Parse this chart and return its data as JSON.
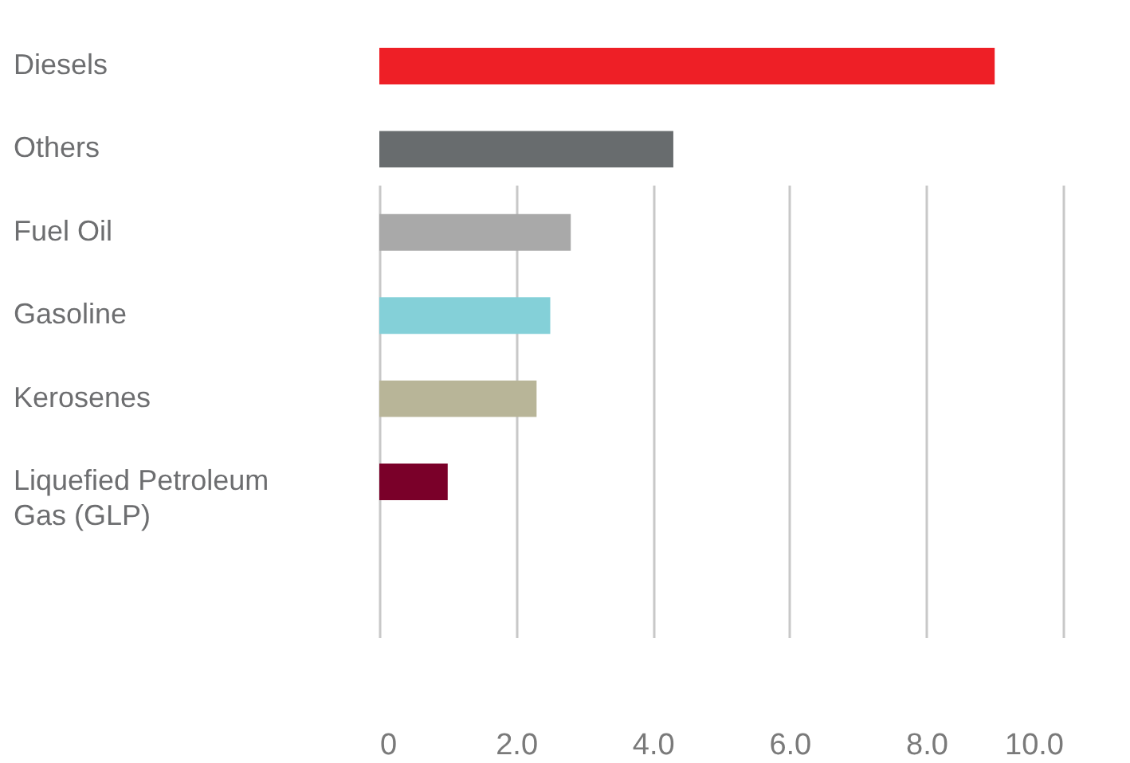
{
  "chart_data": {
    "type": "bar",
    "orientation": "horizontal",
    "categories": [
      "Diesels",
      "Others",
      "Fuel Oil",
      "Gasoline",
      "Kerosenes",
      "Liquefied Petroleum Gas (GLP)"
    ],
    "values": [
      9.0,
      4.3,
      2.8,
      2.5,
      2.3,
      1.0
    ],
    "colors": [
      "#ee1f26",
      "#686c6e",
      "#a9a9a9",
      "#84d0d8",
      "#b8b598",
      "#7a0029"
    ],
    "xlim": [
      0,
      10
    ],
    "xticks": [
      0,
      {
        "value": 2,
        "label": "2.0"
      },
      {
        "value": 4,
        "label": "4.0"
      },
      {
        "value": 6,
        "label": "6.0"
      },
      {
        "value": 8,
        "label": "8.0"
      },
      {
        "value": 10,
        "label": "10.0"
      }
    ],
    "grid": "x"
  }
}
